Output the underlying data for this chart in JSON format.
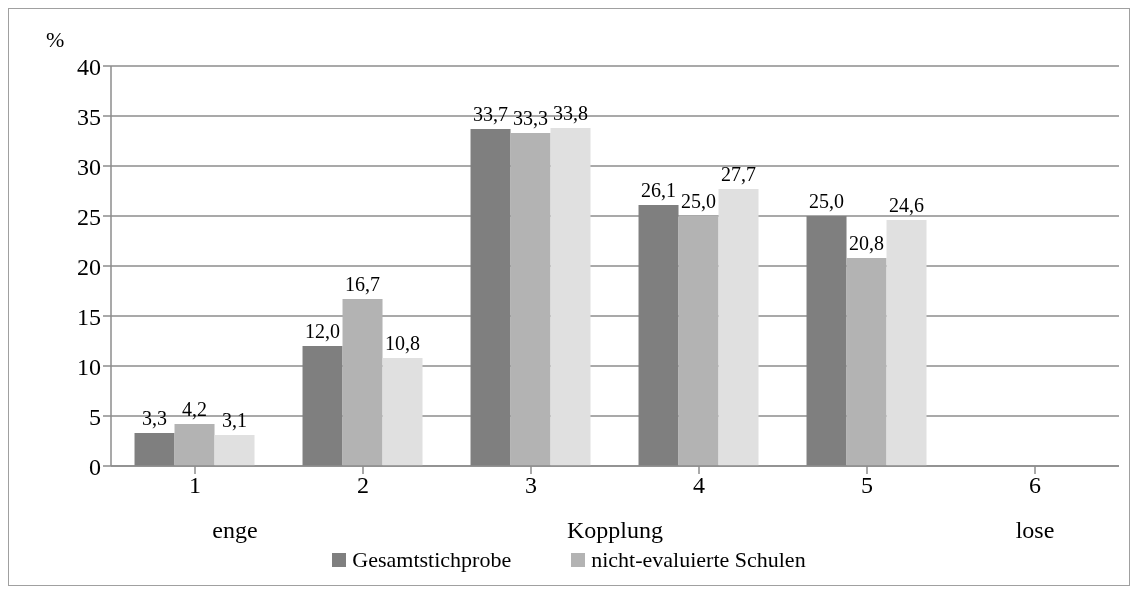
{
  "chart_data": {
    "type": "bar",
    "ylabel": "%",
    "xlabel": "Kopplung",
    "categories": [
      "1",
      "2",
      "3",
      "4",
      "5",
      "6"
    ],
    "series": [
      {
        "name": "Gesamtstichprobe",
        "color": "#7f7f7f",
        "values": [
          3.3,
          12.0,
          33.7,
          26.1,
          25.0,
          null
        ],
        "value_labels": [
          "3,3",
          "12,0",
          "33,7",
          "26,1",
          "25,0",
          null
        ]
      },
      {
        "name": "nicht-evaluierte Schulen",
        "color": "#b3b3b3",
        "values": [
          4.2,
          16.7,
          33.3,
          25.0,
          20.8,
          null
        ],
        "value_labels": [
          "4,2",
          "16,7",
          "33,3",
          "25,0",
          "20,8",
          null
        ]
      },
      {
        "color": "#e0e0e0",
        "values": [
          3.1,
          10.8,
          33.8,
          27.7,
          24.6,
          null
        ],
        "value_labels": [
          "3,1",
          "10,8",
          "33,8",
          "27,7",
          "24,6",
          null
        ]
      }
    ],
    "annotations": [
      "enge",
      "lose"
    ],
    "ylim": [
      0,
      40
    ],
    "yticks": [
      0,
      5,
      10,
      15,
      20,
      25,
      30,
      35,
      40
    ],
    "grid": "y",
    "legend": "bottom"
  }
}
